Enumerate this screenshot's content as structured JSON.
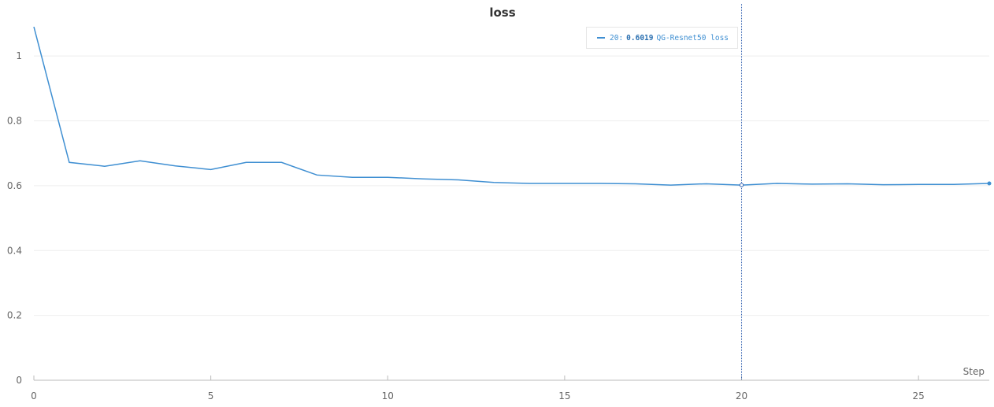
{
  "chart_data": {
    "type": "line",
    "title": "loss",
    "xlabel": "Step",
    "ylabel": "",
    "xlim": [
      0,
      27
    ],
    "ylim": [
      0,
      1.1
    ],
    "x_ticks": [
      0,
      5,
      10,
      15,
      20,
      25
    ],
    "y_ticks": [
      0,
      0.2,
      0.4,
      0.6,
      0.8,
      1
    ],
    "grid": true,
    "series": [
      {
        "name": "QG-Resnet50 loss",
        "color": "#3f8fd2",
        "x": [
          0,
          1,
          2,
          3,
          4,
          5,
          6,
          7,
          8,
          9,
          10,
          11,
          12,
          13,
          14,
          15,
          16,
          17,
          18,
          19,
          20,
          21,
          22,
          23,
          24,
          25,
          26,
          27
        ],
        "values": [
          1.09,
          0.672,
          0.66,
          0.677,
          0.661,
          0.65,
          0.672,
          0.672,
          0.633,
          0.626,
          0.626,
          0.621,
          0.618,
          0.61,
          0.607,
          0.607,
          0.607,
          0.606,
          0.602,
          0.606,
          0.6019,
          0.607,
          0.605,
          0.606,
          0.603,
          0.604,
          0.604,
          0.607
        ]
      }
    ],
    "hover": {
      "step_label": "20:",
      "value_label": "0.6019",
      "series_label": "QG-Resnet50 loss",
      "x": 20,
      "y": 0.6019,
      "line_color": "#3060b0"
    }
  }
}
